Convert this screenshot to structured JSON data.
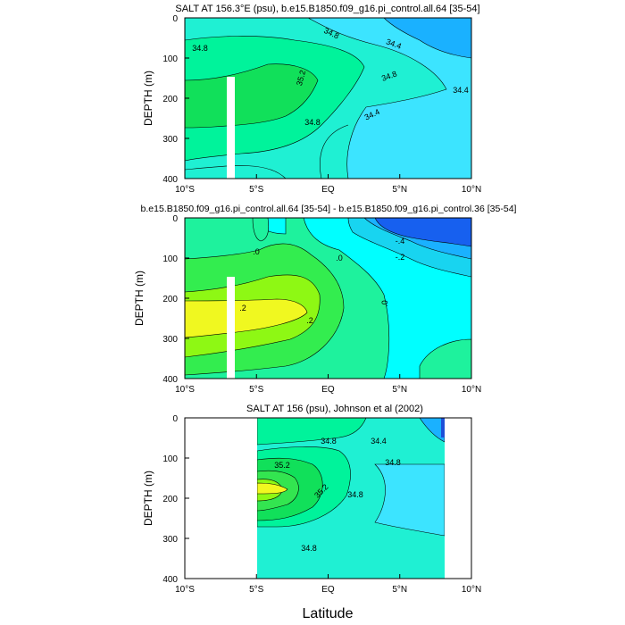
{
  "figure": {
    "xlabel": "Latitude",
    "ylabel_text": "DEPTH (m)"
  },
  "chart_data": [
    {
      "type": "heatmap",
      "title": "SALT AT 156.3°E (psu), b.e15.B1850.f09_g16.pi_control.all.64 [35-54]",
      "ylabel": "DEPTH (m)",
      "x_ticks": [
        "10°S",
        "5°S",
        "EQ",
        "5°N",
        "10°N"
      ],
      "x_tick_values": [
        -10,
        -5,
        0,
        5,
        10
      ],
      "y_ticks": [
        "0",
        "100",
        "200",
        "300",
        "400"
      ],
      "y_tick_values": [
        0,
        100,
        200,
        300,
        400
      ],
      "xlim": [
        -10,
        10
      ],
      "ylim": [
        0,
        400
      ],
      "y_reversed": true,
      "contour_labels": [
        {
          "text": "34.8",
          "lat": -9.0,
          "depth": 75
        },
        {
          "text": "34.8",
          "lat": 0.0,
          "depth": 40
        },
        {
          "text": "34.4",
          "lat": 4.5,
          "depth": 70
        },
        {
          "text": "35.2",
          "lat": -1.5,
          "depth": 150
        },
        {
          "text": "34.8",
          "lat": 4.5,
          "depth": 150
        },
        {
          "text": "34.4",
          "lat": 9.0,
          "depth": 185
        },
        {
          "text": "34.8",
          "lat": -1.0,
          "depth": 265
        },
        {
          "text": "34.4",
          "lat": 3.5,
          "depth": 245
        }
      ],
      "masked_column": {
        "lat_min": -6.9,
        "lat_max": -6.35,
        "depth_min": 150,
        "depth_max": 400
      },
      "regions": [
        {
          "salinity": 35.0,
          "color": "#00f39b",
          "points": [
            [
              -10,
              100
            ],
            [
              -9,
              95
            ],
            [
              -7.5,
              80
            ],
            [
              -6,
              75
            ],
            [
              -4.5,
              95
            ],
            [
              -3.8,
              130
            ],
            [
              -4.2,
              170
            ],
            [
              -5.5,
              200
            ],
            [
              -7.5,
              215
            ],
            [
              -10,
              215
            ]
          ]
        },
        {
          "salinity": 35.2,
          "color": "#11e05a",
          "points": [
            [
              -10,
              145
            ],
            [
              -8,
              140
            ],
            [
              -6.5,
              130
            ],
            [
              -5,
              115
            ],
            [
              -3.8,
              110
            ],
            [
              -2.8,
              140
            ],
            [
              -3.3,
              170
            ],
            [
              -5,
              200
            ],
            [
              -7.5,
              205
            ],
            [
              -10,
              205
            ]
          ]
        }
      ],
      "colors": {
        "low": "#1a86ff",
        "mid_low": "#3ce4ff",
        "mid": "#1ff0d3",
        "high": "#00f39b",
        "highest": "#11e05a"
      }
    },
    {
      "type": "heatmap",
      "title": "b.e15.B1850.f09_g16.pi_control.all.64 [35-54] - b.e15.B1850.f09_g16.pi_control.36 [35-54]",
      "ylabel": "DEPTH (m)",
      "x_ticks": [
        "10°S",
        "5°S",
        "EQ",
        "5°N",
        "10°N"
      ],
      "x_tick_values": [
        -10,
        -5,
        0,
        5,
        10
      ],
      "y_ticks": [
        "0",
        "100",
        "200",
        "300",
        "400"
      ],
      "y_tick_values": [
        0,
        100,
        200,
        300,
        400
      ],
      "xlim": [
        -10,
        10
      ],
      "ylim": [
        0,
        400
      ],
      "y_reversed": true,
      "contour_labels": [
        {
          "text": ".0",
          "lat": -5.0,
          "depth": 85
        },
        {
          "text": ".0",
          "lat": 0.8,
          "depth": 100
        },
        {
          "text": "-.4",
          "lat": 5.0,
          "depth": 35
        },
        {
          "text": "-.2",
          "lat": 5.0,
          "depth": 75
        },
        {
          "text": ".2",
          "lat": -6.0,
          "depth": 220
        },
        {
          "text": ".2",
          "lat": -1.3,
          "depth": 250
        },
        {
          "text": ".0",
          "lat": 4.0,
          "depth": 200
        }
      ],
      "masked_column": {
        "lat_min": -6.9,
        "lat_max": -6.35,
        "depth_min": 150,
        "depth_max": 400
      },
      "colors": {
        "neg_high": "#1760ef",
        "neg": "#1ab1ff",
        "neg_low": "#18d4f0",
        "zero": "#00ffff",
        "pos_low": "#1ef29d",
        "pos": "#33ed4f",
        "pos_high": "#8ef814",
        "pos_max": "#f0f820"
      }
    },
    {
      "type": "heatmap",
      "title": "SALT AT 156 (psu), Johnson et al (2002)",
      "ylabel": "DEPTH (m)",
      "x_ticks": [
        "10°S",
        "5°S",
        "EQ",
        "5°N",
        "10°N"
      ],
      "x_tick_values": [
        -10,
        -5,
        0,
        5,
        10
      ],
      "y_ticks": [
        "0",
        "100",
        "200",
        "300",
        "400"
      ],
      "y_tick_values": [
        0,
        100,
        200,
        300,
        400
      ],
      "xlim": [
        -10,
        10
      ],
      "ylim": [
        0,
        400
      ],
      "y_reversed": true,
      "data_extent_lat": [
        -5,
        8
      ],
      "contour_labels": [
        {
          "text": "34.8",
          "lat": -0.8,
          "depth": 60
        },
        {
          "text": "34.4",
          "lat": 3.5,
          "depth": 60
        },
        {
          "text": "34.8",
          "lat": 4.5,
          "depth": 115
        },
        {
          "text": "35.2",
          "lat": -4.0,
          "depth": 135
        },
        {
          "text": "35.2",
          "lat": -1.0,
          "depth": 210
        },
        {
          "text": "34.8",
          "lat": 2.0,
          "depth": 205
        },
        {
          "text": "34.8",
          "lat": -1.5,
          "depth": 365
        }
      ],
      "colors": {
        "low": "#1a86ff",
        "mid_low": "#3ce4ff",
        "mid": "#1ff0d3",
        "high": "#00f39b",
        "higher": "#11e05a",
        "higher2": "#33e550",
        "highest": "#8ef814",
        "max": "#f0f820",
        "deep_blue": "#1e4fd8"
      }
    }
  ]
}
